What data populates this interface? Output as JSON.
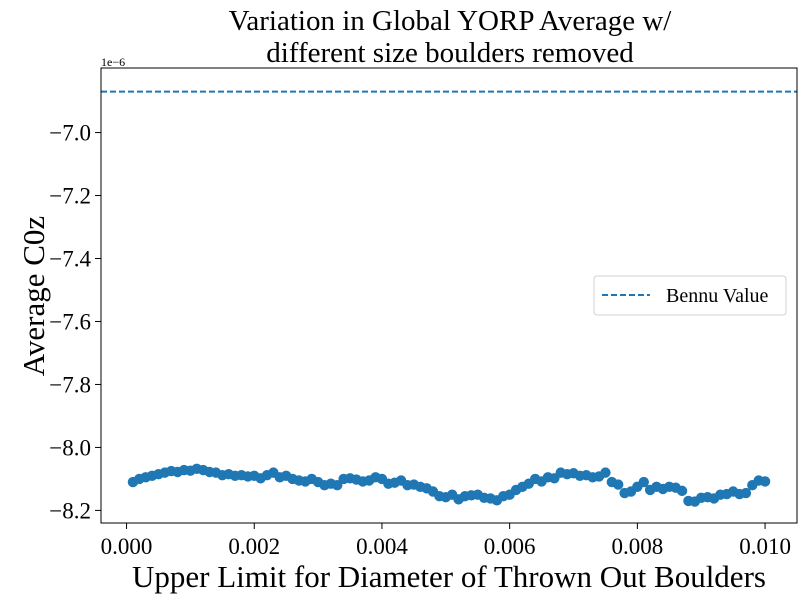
{
  "chart_data": {
    "type": "scatter",
    "title_lines": [
      "Variation in Global YORP Average w/",
      "different size boulders removed"
    ],
    "xlabel": "Upper Limit for Diameter of Thrown Out Boulders",
    "ylabel": "Average C0z",
    "y_offset_label": "1e−6",
    "xlim": [
      -0.0004,
      0.0105
    ],
    "ylim": [
      -8.24,
      -6.795
    ],
    "x_ticks": [
      0.0,
      0.002,
      0.004,
      0.006,
      0.008,
      0.01
    ],
    "x_tick_labels": [
      "0.000",
      "0.002",
      "0.004",
      "0.006",
      "0.008",
      "0.010"
    ],
    "y_ticks": [
      -7.0,
      -7.2,
      -7.4,
      -7.6,
      -7.8,
      -8.0,
      -8.2
    ],
    "y_tick_labels": [
      "−7.0",
      "−7.2",
      "−7.4",
      "−7.6",
      "−7.8",
      "−8.0",
      "−8.2"
    ],
    "grid": false,
    "legend_position": "center-right",
    "reference_line": {
      "name": "Bennu Value",
      "y": -6.87,
      "color": "#1f77b4",
      "style": "dashed"
    },
    "series": [
      {
        "color": "#1f77b4",
        "x": [
          0.0001,
          0.0002,
          0.0003,
          0.0004,
          0.0005,
          0.0006,
          0.0007,
          0.0008,
          0.0009,
          0.001,
          0.0011,
          0.0012,
          0.0013,
          0.0014,
          0.0015,
          0.0016,
          0.0017,
          0.0018,
          0.0019,
          0.002,
          0.0021,
          0.0022,
          0.0023,
          0.0024,
          0.0025,
          0.0026,
          0.0027,
          0.0028,
          0.0029,
          0.003,
          0.0031,
          0.0032,
          0.0033,
          0.0034,
          0.0035,
          0.0036,
          0.0037,
          0.0038,
          0.0039,
          0.004,
          0.0041,
          0.0042,
          0.0043,
          0.0044,
          0.0045,
          0.0046,
          0.0047,
          0.0048,
          0.0049,
          0.005,
          0.0051,
          0.0052,
          0.0053,
          0.0054,
          0.0055,
          0.0056,
          0.0057,
          0.0058,
          0.0059,
          0.006,
          0.0061,
          0.0062,
          0.0063,
          0.0064,
          0.0065,
          0.0066,
          0.0067,
          0.0068,
          0.0069,
          0.007,
          0.0071,
          0.0072,
          0.0073,
          0.0074,
          0.0075,
          0.0076,
          0.0077,
          0.0078,
          0.0079,
          0.008,
          0.0081,
          0.0082,
          0.0083,
          0.0084,
          0.0085,
          0.0086,
          0.0087,
          0.0088,
          0.0089,
          0.009,
          0.0091,
          0.0092,
          0.0093,
          0.0094,
          0.0095,
          0.0096,
          0.0097,
          0.0098,
          0.0099,
          0.01
        ],
        "y": [
          -8.11,
          -8.1,
          -8.095,
          -8.09,
          -8.085,
          -8.08,
          -8.075,
          -8.078,
          -8.072,
          -8.074,
          -8.068,
          -8.072,
          -8.078,
          -8.08,
          -8.088,
          -8.085,
          -8.09,
          -8.088,
          -8.092,
          -8.09,
          -8.098,
          -8.088,
          -8.08,
          -8.095,
          -8.09,
          -8.1,
          -8.105,
          -8.108,
          -8.1,
          -8.11,
          -8.12,
          -8.115,
          -8.12,
          -8.1,
          -8.098,
          -8.102,
          -8.108,
          -8.105,
          -8.095,
          -8.1,
          -8.115,
          -8.112,
          -8.105,
          -8.12,
          -8.118,
          -8.125,
          -8.13,
          -8.14,
          -8.155,
          -8.158,
          -8.15,
          -8.165,
          -8.155,
          -8.152,
          -8.15,
          -8.16,
          -8.162,
          -8.168,
          -8.155,
          -8.15,
          -8.135,
          -8.125,
          -8.115,
          -8.1,
          -8.108,
          -8.095,
          -8.098,
          -8.08,
          -8.085,
          -8.082,
          -8.09,
          -8.088,
          -8.095,
          -8.092,
          -8.08,
          -8.11,
          -8.118,
          -8.145,
          -8.14,
          -8.125,
          -8.11,
          -8.135,
          -8.125,
          -8.132,
          -8.125,
          -8.128,
          -8.138,
          -8.17,
          -8.172,
          -8.16,
          -8.158,
          -8.162,
          -8.15,
          -8.148,
          -8.14,
          -8.148,
          -8.145,
          -8.12,
          -8.105,
          -8.108
        ]
      }
    ]
  }
}
